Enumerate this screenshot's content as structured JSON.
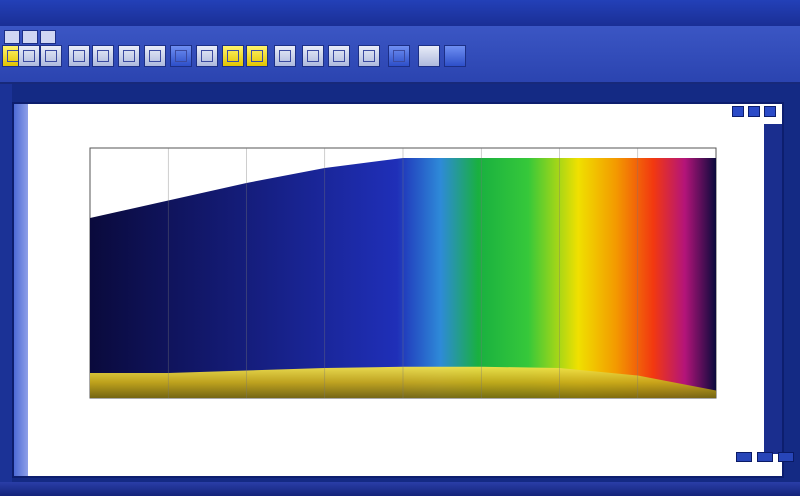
{
  "app": {
    "title": ""
  },
  "toolbar": {
    "buttons": [
      {
        "name": "new-icon",
        "style": "yellow"
      },
      {
        "name": "open-icon",
        "style": "plain"
      },
      {
        "name": "save-icon",
        "style": "plain"
      },
      {
        "name": "print-icon",
        "style": "plain"
      },
      {
        "name": "cut-icon",
        "style": "plain"
      },
      {
        "name": "copy-icon",
        "style": "plain"
      },
      {
        "name": "paste-icon",
        "style": "plain"
      },
      {
        "name": "undo-icon",
        "style": "blue"
      },
      {
        "name": "redo-icon",
        "style": "plain"
      },
      {
        "name": "chart-icon",
        "style": "yellow"
      },
      {
        "name": "table-icon",
        "style": "yellow"
      },
      {
        "name": "zoom-icon",
        "style": "plain"
      },
      {
        "name": "layer-icon",
        "style": "plain"
      },
      {
        "name": "export-icon",
        "style": "plain"
      },
      {
        "name": "settings-icon",
        "style": "plain"
      },
      {
        "name": "align-icon",
        "style": "blue"
      }
    ]
  },
  "document": {
    "plot_title": "",
    "x_axis_label": "",
    "x_axis_sublabel": ""
  },
  "chart_data": {
    "type": "area",
    "title": "",
    "xlabel": "",
    "ylabel": "",
    "grid": true,
    "colors": {
      "fill_dark": "#0a0a3c",
      "band_yellow": "#d8c21a",
      "spectrum": [
        "#0a0a3c",
        "#1f2fb8",
        "#2e8ad8",
        "#19b040",
        "#36c83a",
        "#f0e000",
        "#f39a00",
        "#f23810",
        "#b4147a",
        "#0a0a3c"
      ]
    },
    "ylim": [
      0,
      1000
    ],
    "xlim": [
      0,
      800
    ],
    "upper_boundary": {
      "x": [
        0,
        100,
        200,
        300,
        400,
        500,
        600,
        700,
        800
      ],
      "y": [
        720,
        790,
        860,
        920,
        960,
        960,
        960,
        960,
        960
      ]
    },
    "lower_band": {
      "x": [
        0,
        100,
        200,
        300,
        400,
        500,
        600,
        700,
        800
      ],
      "y": [
        100,
        100,
        110,
        120,
        125,
        125,
        120,
        90,
        30
      ]
    }
  },
  "status": {
    "text": ""
  }
}
